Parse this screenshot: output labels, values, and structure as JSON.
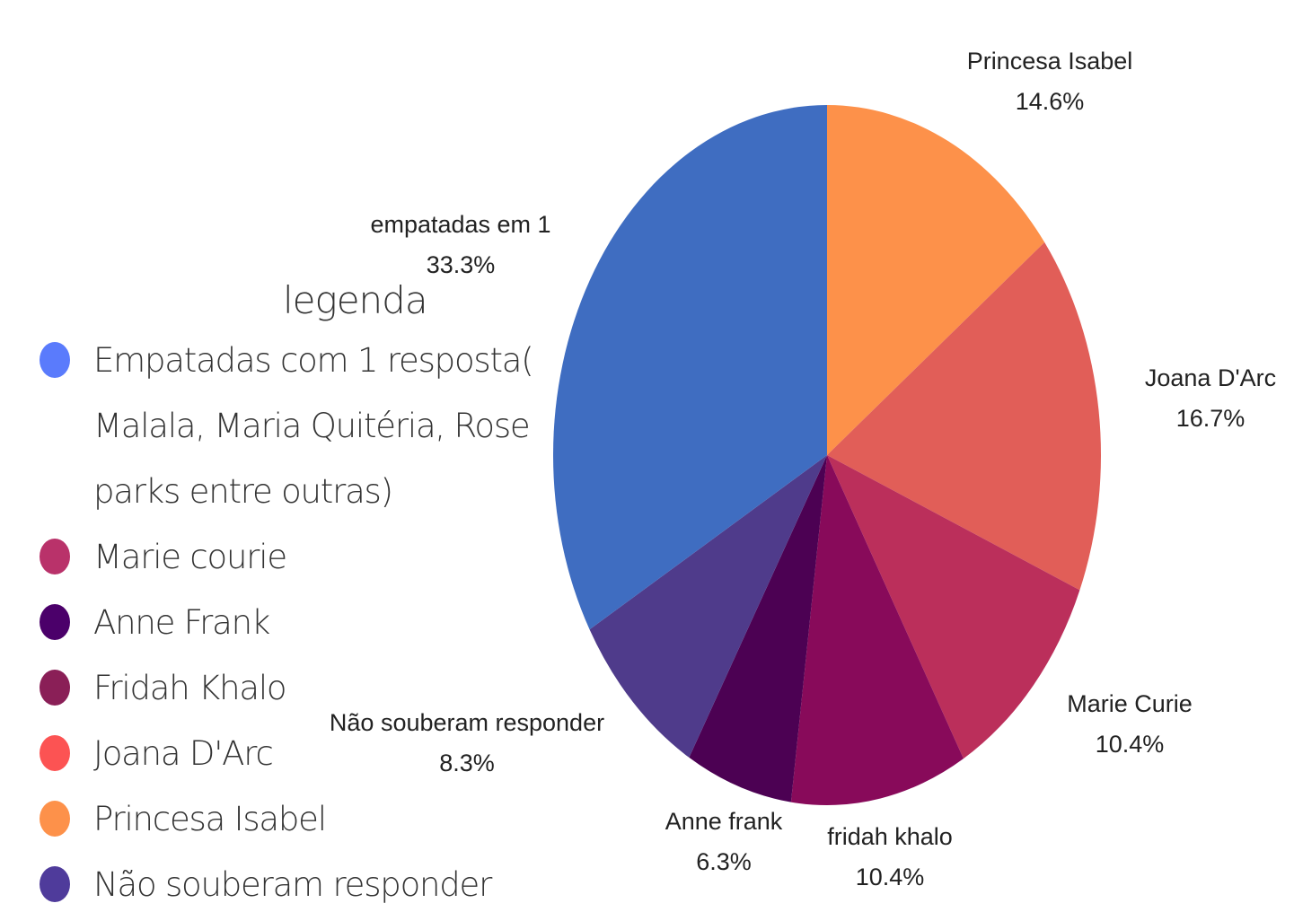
{
  "chart_data": {
    "type": "pie",
    "categories": [
      "Princesa Isabel",
      "Joana D'Arc",
      "Marie Curie",
      "fridah khalo",
      "Anne frank",
      "Não souberam responder",
      "empatadas em 1"
    ],
    "values": [
      14.6,
      16.7,
      10.4,
      10.4,
      6.3,
      8.3,
      33.3
    ],
    "value_labels": [
      "14.6%",
      "16.7%",
      "10.4%",
      "10.4%",
      "6.3%",
      "8.3%",
      "33.3%"
    ],
    "colors": [
      "#fd914a",
      "#e15e58",
      "#bb2f5b",
      "#880a5a",
      "#4c0153",
      "#4f3b8b",
      "#3f6dc1"
    ]
  },
  "legend": {
    "title": "legenda",
    "items": [
      {
        "label": "Empatadas com 1 resposta( Malala, Maria Quitéria, Rose parks entre outras)",
        "color": "#5a7bfc"
      },
      {
        "label": "Marie courie",
        "color": "#b9326a"
      },
      {
        "label": "Anne Frank",
        "color": "#4b006a"
      },
      {
        "label": "Fridah Khalo",
        "color": "#8a1f57"
      },
      {
        "label": "Joana D'Arc",
        "color": "#fc5353"
      },
      {
        "label": "Princesa Isabel",
        "color": "#fd914a"
      },
      {
        "label": "Não souberam responder",
        "color": "#4f3b9b"
      }
    ]
  }
}
